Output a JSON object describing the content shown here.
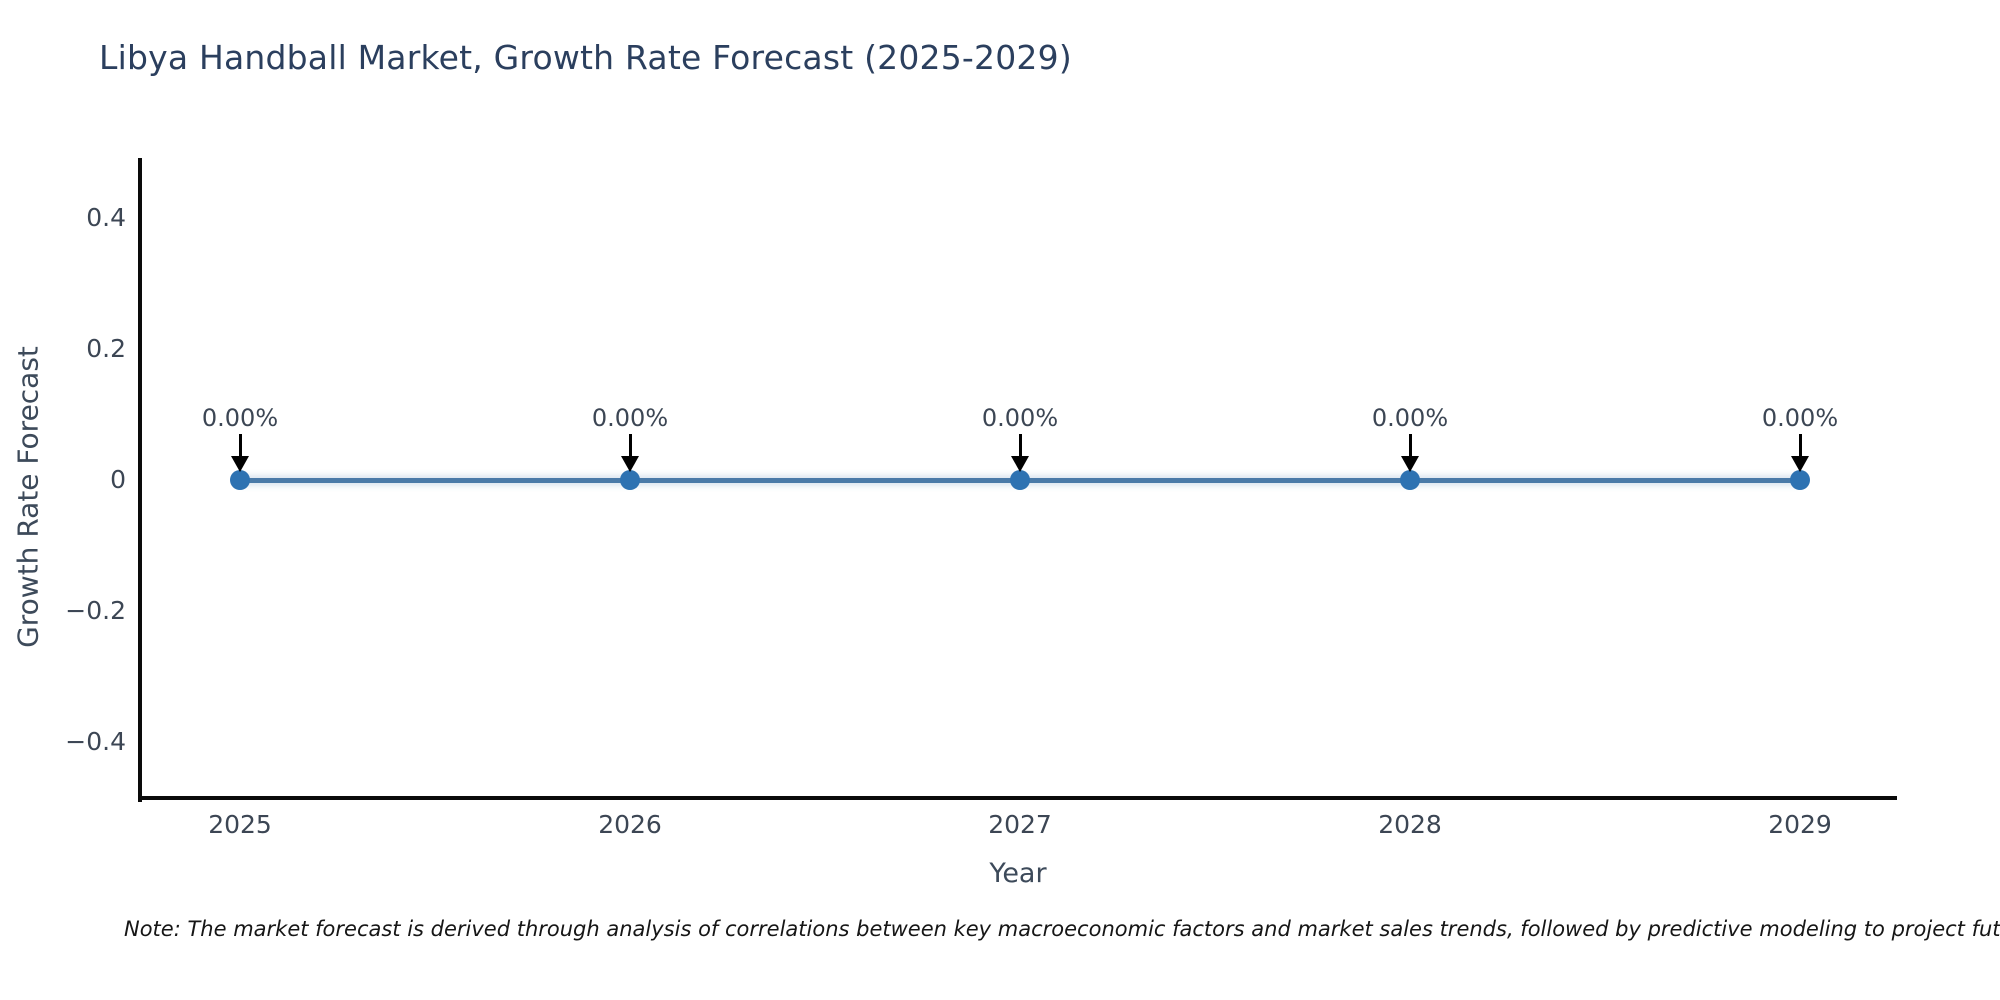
{
  "chart_data": {
    "type": "line",
    "title": "Libya Handball Market, Growth Rate Forecast (2025-2029)",
    "xlabel": "Year",
    "ylabel": "Growth Rate Forecast",
    "categories": [
      "2025",
      "2026",
      "2027",
      "2028",
      "2029"
    ],
    "series": [
      {
        "name": "Growth Rate Forecast",
        "values": [
          0,
          0,
          0,
          0,
          0
        ]
      }
    ],
    "point_labels": [
      "0.00%",
      "0.00%",
      "0.00%",
      "0.00%",
      "0.00%"
    ],
    "yticks": [
      {
        "label": "0.4",
        "value": 0.4
      },
      {
        "label": "0.2",
        "value": 0.2
      },
      {
        "label": "0",
        "value": 0
      },
      {
        "label": "−0.2",
        "value": -0.2
      },
      {
        "label": "−0.4",
        "value": -0.4
      }
    ],
    "ylim": [
      -0.49,
      0.49
    ],
    "grid": false,
    "legend": "none",
    "annotation_arrows": "black-down-arrow-to-each-point",
    "colors": {
      "line": "#4a7aa8",
      "marker": "#2d72b2",
      "arrow": "#000000",
      "title_text": "#2b3f5e",
      "axis_text": "#3c4654",
      "spine": "#0a0a0a",
      "background": "#ffffff"
    },
    "note": "Note: The market forecast is derived through analysis of correlations between key macroeconomic factors and market sales trends, followed by predictive modeling to project future sa"
  }
}
